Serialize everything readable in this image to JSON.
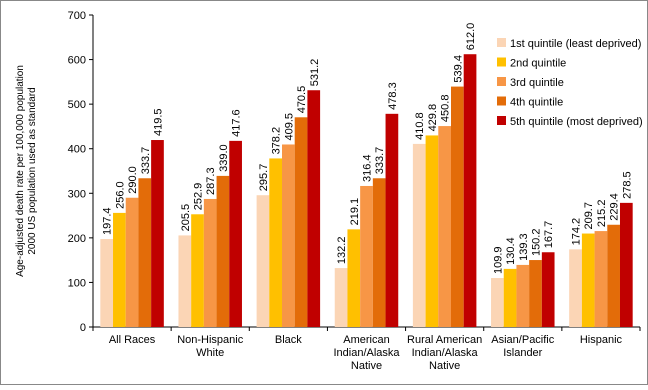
{
  "chart_data": {
    "type": "bar",
    "ylabel_line1": "Age-adjusted death rate per 100,000 population",
    "ylabel_line2": "2000 US population used as standard",
    "ylim": [
      0,
      700
    ],
    "yticks": [
      0,
      100,
      200,
      300,
      400,
      500,
      600,
      700
    ],
    "grid": false,
    "legend_position": "top-right",
    "categories": [
      [
        "All Races"
      ],
      [
        "Non-Hispanic",
        "White"
      ],
      [
        "Black"
      ],
      [
        "American",
        "Indian/Alaska",
        "Native"
      ],
      [
        "Rural American",
        "Indian/Alaska",
        "Native"
      ],
      [
        "Asian/Pacific",
        "Islander"
      ],
      [
        "Hispanic"
      ]
    ],
    "series": [
      {
        "name": "1st quintile (least deprived)",
        "color": "#FBD5B5",
        "values": [
          197.4,
          205.5,
          295.7,
          132.2,
          410.8,
          109.9,
          174.2
        ]
      },
      {
        "name": "2nd quintile",
        "color": "#FFC000",
        "values": [
          256.0,
          252.9,
          378.2,
          219.1,
          429.8,
          130.4,
          209.7
        ]
      },
      {
        "name": "3rd quintile",
        "color": "#F79646",
        "values": [
          290.0,
          287.3,
          409.5,
          316.4,
          450.8,
          139.3,
          215.2
        ]
      },
      {
        "name": "4th quintile",
        "color": "#E36C09",
        "values": [
          333.7,
          339.0,
          470.5,
          333.7,
          539.4,
          150.2,
          229.4
        ]
      },
      {
        "name": "5th quintile (most deprived)",
        "color": "#C00000",
        "values": [
          419.5,
          417.6,
          531.2,
          478.3,
          612.0,
          167.7,
          278.5
        ]
      }
    ]
  }
}
